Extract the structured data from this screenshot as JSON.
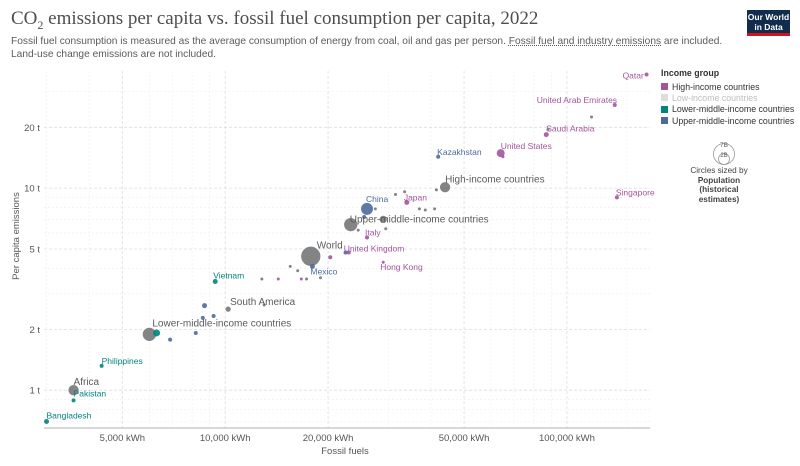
{
  "title_main": "CO",
  "title_sub": "2",
  "title_rest": " emissions per capita vs. fossil fuel consumption per capita, 2022",
  "subtitle_a": "Fossil fuel consumption is measured as the average consumption of energy from coal, oil and gas per person. ",
  "subtitle_link": "Fossil fuel and industry emissions",
  "subtitle_b": " are included. Land-use change emissions are not included.",
  "logo_line1": "Our World",
  "logo_line2": "in Data",
  "legend": {
    "title": "Income group",
    "items": [
      {
        "label": "High-income countries",
        "color": "#a2559c",
        "faded": false
      },
      {
        "label": "Low-income countries",
        "color": "#dddddd",
        "faded": true
      },
      {
        "label": "Lower-middle-income countries",
        "color": "#00847e",
        "faded": false
      },
      {
        "label": "Upper-middle-income countries",
        "color": "#4c6a9c",
        "faded": false
      }
    ]
  },
  "size_legend": {
    "big": "7B",
    "small": "2B",
    "note_line1": "Circles sized by",
    "note_line2": "Population (historical",
    "note_line3": "estimates)"
  },
  "colors": {
    "high": "#a2559c",
    "lower_middle": "#00847e",
    "upper_middle": "#4c6a9c",
    "aggregate": "#6d6e71",
    "minor": "#777777"
  },
  "chart_data": {
    "type": "scatter",
    "xlabel": "Fossil fuels",
    "ylabel": "Per capita emissions",
    "x_scale": "log",
    "y_scale": "log",
    "xlim": [
      2950,
      175000
    ],
    "ylim": [
      0.65,
      38
    ],
    "x_ticks": [
      {
        "value": 5000,
        "label": "5,000 kWh"
      },
      {
        "value": 10000,
        "label": "10,000 kWh"
      },
      {
        "value": 20000,
        "label": "20,000 kWh"
      },
      {
        "value": 50000,
        "label": "50,000 kWh"
      },
      {
        "value": 100000,
        "label": "100,000 kWh"
      }
    ],
    "y_ticks": [
      {
        "value": 1,
        "label": "1 t"
      },
      {
        "value": 2,
        "label": "2 t"
      },
      {
        "value": 5,
        "label": "5 t"
      },
      {
        "value": 10,
        "label": "10 t"
      },
      {
        "value": 20,
        "label": "20 t"
      }
    ],
    "grid": true,
    "points": [
      {
        "label": "Qatar",
        "x": 171000,
        "y": 36.5,
        "group": "high",
        "r": 2
      },
      {
        "label": "United Arab Emirates",
        "x": 138000,
        "y": 25.8,
        "group": "high",
        "r": 2
      },
      {
        "label": "Saudi Arabia",
        "x": 87000,
        "y": 18.4,
        "group": "high",
        "r": 2.5
      },
      {
        "label": "United States",
        "x": 64000,
        "y": 14.9,
        "group": "high",
        "r": 4
      },
      {
        "label": "Singapore",
        "x": 140000,
        "y": 9.0,
        "group": "high",
        "r": 2
      },
      {
        "label": "Kazakhstan",
        "x": 42000,
        "y": 14.3,
        "group": "upper_middle",
        "r": 2
      },
      {
        "label": "High-income countries",
        "x": 44000,
        "y": 10.1,
        "group": "aggregate",
        "r": 5.5
      },
      {
        "label": "China",
        "x": 26000,
        "y": 7.9,
        "group": "upper_middle",
        "r": 6
      },
      {
        "label": "Japan",
        "x": 34000,
        "y": 8.5,
        "group": "high",
        "r": 2.5
      },
      {
        "label": "Upper-middle-income countries",
        "x": 23300,
        "y": 6.6,
        "group": "aggregate",
        "r": 7
      },
      {
        "label": "Italy",
        "x": 26000,
        "y": 5.7,
        "group": "high",
        "r": 2
      },
      {
        "label": "World",
        "x": 17800,
        "y": 4.6,
        "group": "aggregate",
        "r": 10
      },
      {
        "label": "United Kingdom",
        "x": 23000,
        "y": 4.8,
        "group": "high",
        "r": 2
      },
      {
        "label": "Mexico",
        "x": 18000,
        "y": 4.1,
        "group": "upper_middle",
        "r": 2.5
      },
      {
        "label": "Hong Kong",
        "x": 29000,
        "y": 4.3,
        "group": "high",
        "r": 1.5
      },
      {
        "label": "Vietnam",
        "x": 9350,
        "y": 3.45,
        "group": "lower_middle",
        "r": 2.5
      },
      {
        "label": "South America",
        "x": 10200,
        "y": 2.52,
        "group": "aggregate",
        "r": 3
      },
      {
        "label": "Lower-middle-income countries",
        "x": 6000,
        "y": 1.89,
        "group": "aggregate",
        "r": 7
      },
      {
        "label": "Philippines",
        "x": 4350,
        "y": 1.32,
        "group": "lower_middle",
        "r": 2
      },
      {
        "label": "Africa",
        "x": 3600,
        "y": 1.0,
        "group": "aggregate",
        "r": 5.5
      },
      {
        "label": "Pakistan",
        "x": 3600,
        "y": 0.89,
        "group": "lower_middle",
        "r": 2
      },
      {
        "label": "Bangladesh",
        "x": 3000,
        "y": 0.7,
        "group": "lower_middle",
        "r": 2.5
      },
      {
        "label": "",
        "x": 6300,
        "y": 1.92,
        "group": "lower_middle",
        "r": 3.5
      },
      {
        "label": "",
        "x": 6900,
        "y": 1.78,
        "group": "upper_middle",
        "r": 2
      },
      {
        "label": "",
        "x": 8200,
        "y": 1.92,
        "group": "upper_middle",
        "r": 2
      },
      {
        "label": "",
        "x": 8600,
        "y": 2.28,
        "group": "upper_middle",
        "r": 2
      },
      {
        "label": "",
        "x": 8700,
        "y": 2.62,
        "group": "upper_middle",
        "r": 2.5
      },
      {
        "label": "",
        "x": 9250,
        "y": 2.33,
        "group": "upper_middle",
        "r": 2
      },
      {
        "label": "",
        "x": 13000,
        "y": 2.64,
        "group": "minor",
        "r": 1.5
      },
      {
        "label": "",
        "x": 12800,
        "y": 3.55,
        "group": "minor",
        "r": 1.5
      },
      {
        "label": "",
        "x": 14300,
        "y": 3.55,
        "group": "high",
        "r": 1.5
      },
      {
        "label": "",
        "x": 15500,
        "y": 4.1,
        "group": "minor",
        "r": 1.5
      },
      {
        "label": "",
        "x": 16300,
        "y": 3.9,
        "group": "minor",
        "r": 1.5
      },
      {
        "label": "",
        "x": 16700,
        "y": 3.55,
        "group": "high",
        "r": 1.5
      },
      {
        "label": "",
        "x": 17300,
        "y": 3.55,
        "group": "minor",
        "r": 1.5
      },
      {
        "label": "",
        "x": 19000,
        "y": 3.6,
        "group": "minor",
        "r": 1.5
      },
      {
        "label": "",
        "x": 20300,
        "y": 4.55,
        "group": "high",
        "r": 2
      },
      {
        "label": "",
        "x": 22500,
        "y": 4.8,
        "group": "upper_middle",
        "r": 2
      },
      {
        "label": "",
        "x": 24500,
        "y": 6.2,
        "group": "minor",
        "r": 1.5
      },
      {
        "label": "",
        "x": 25500,
        "y": 7.2,
        "group": "upper_middle",
        "r": 2
      },
      {
        "label": "",
        "x": 27500,
        "y": 7.9,
        "group": "minor",
        "r": 1.5
      },
      {
        "label": "",
        "x": 29000,
        "y": 7.0,
        "group": "aggregate",
        "r": 4
      },
      {
        "label": "",
        "x": 29500,
        "y": 6.3,
        "group": "minor",
        "r": 1.5
      },
      {
        "label": "",
        "x": 31500,
        "y": 9.3,
        "group": "minor",
        "r": 1.5
      },
      {
        "label": "",
        "x": 33500,
        "y": 9.6,
        "group": "minor",
        "r": 1.5
      },
      {
        "label": "",
        "x": 37000,
        "y": 7.9,
        "group": "minor",
        "r": 1.5
      },
      {
        "label": "",
        "x": 38500,
        "y": 7.8,
        "group": "minor",
        "r": 1.5
      },
      {
        "label": "",
        "x": 41000,
        "y": 7.9,
        "group": "minor",
        "r": 1.5
      },
      {
        "label": "",
        "x": 41500,
        "y": 9.8,
        "group": "minor",
        "r": 1.5
      },
      {
        "label": "",
        "x": 65000,
        "y": 14.3,
        "group": "high",
        "r": 1.5
      },
      {
        "label": "",
        "x": 88000,
        "y": 19.5,
        "group": "minor",
        "r": 1.5
      },
      {
        "label": "",
        "x": 118000,
        "y": 22.5,
        "group": "minor",
        "r": 1.5
      }
    ]
  }
}
